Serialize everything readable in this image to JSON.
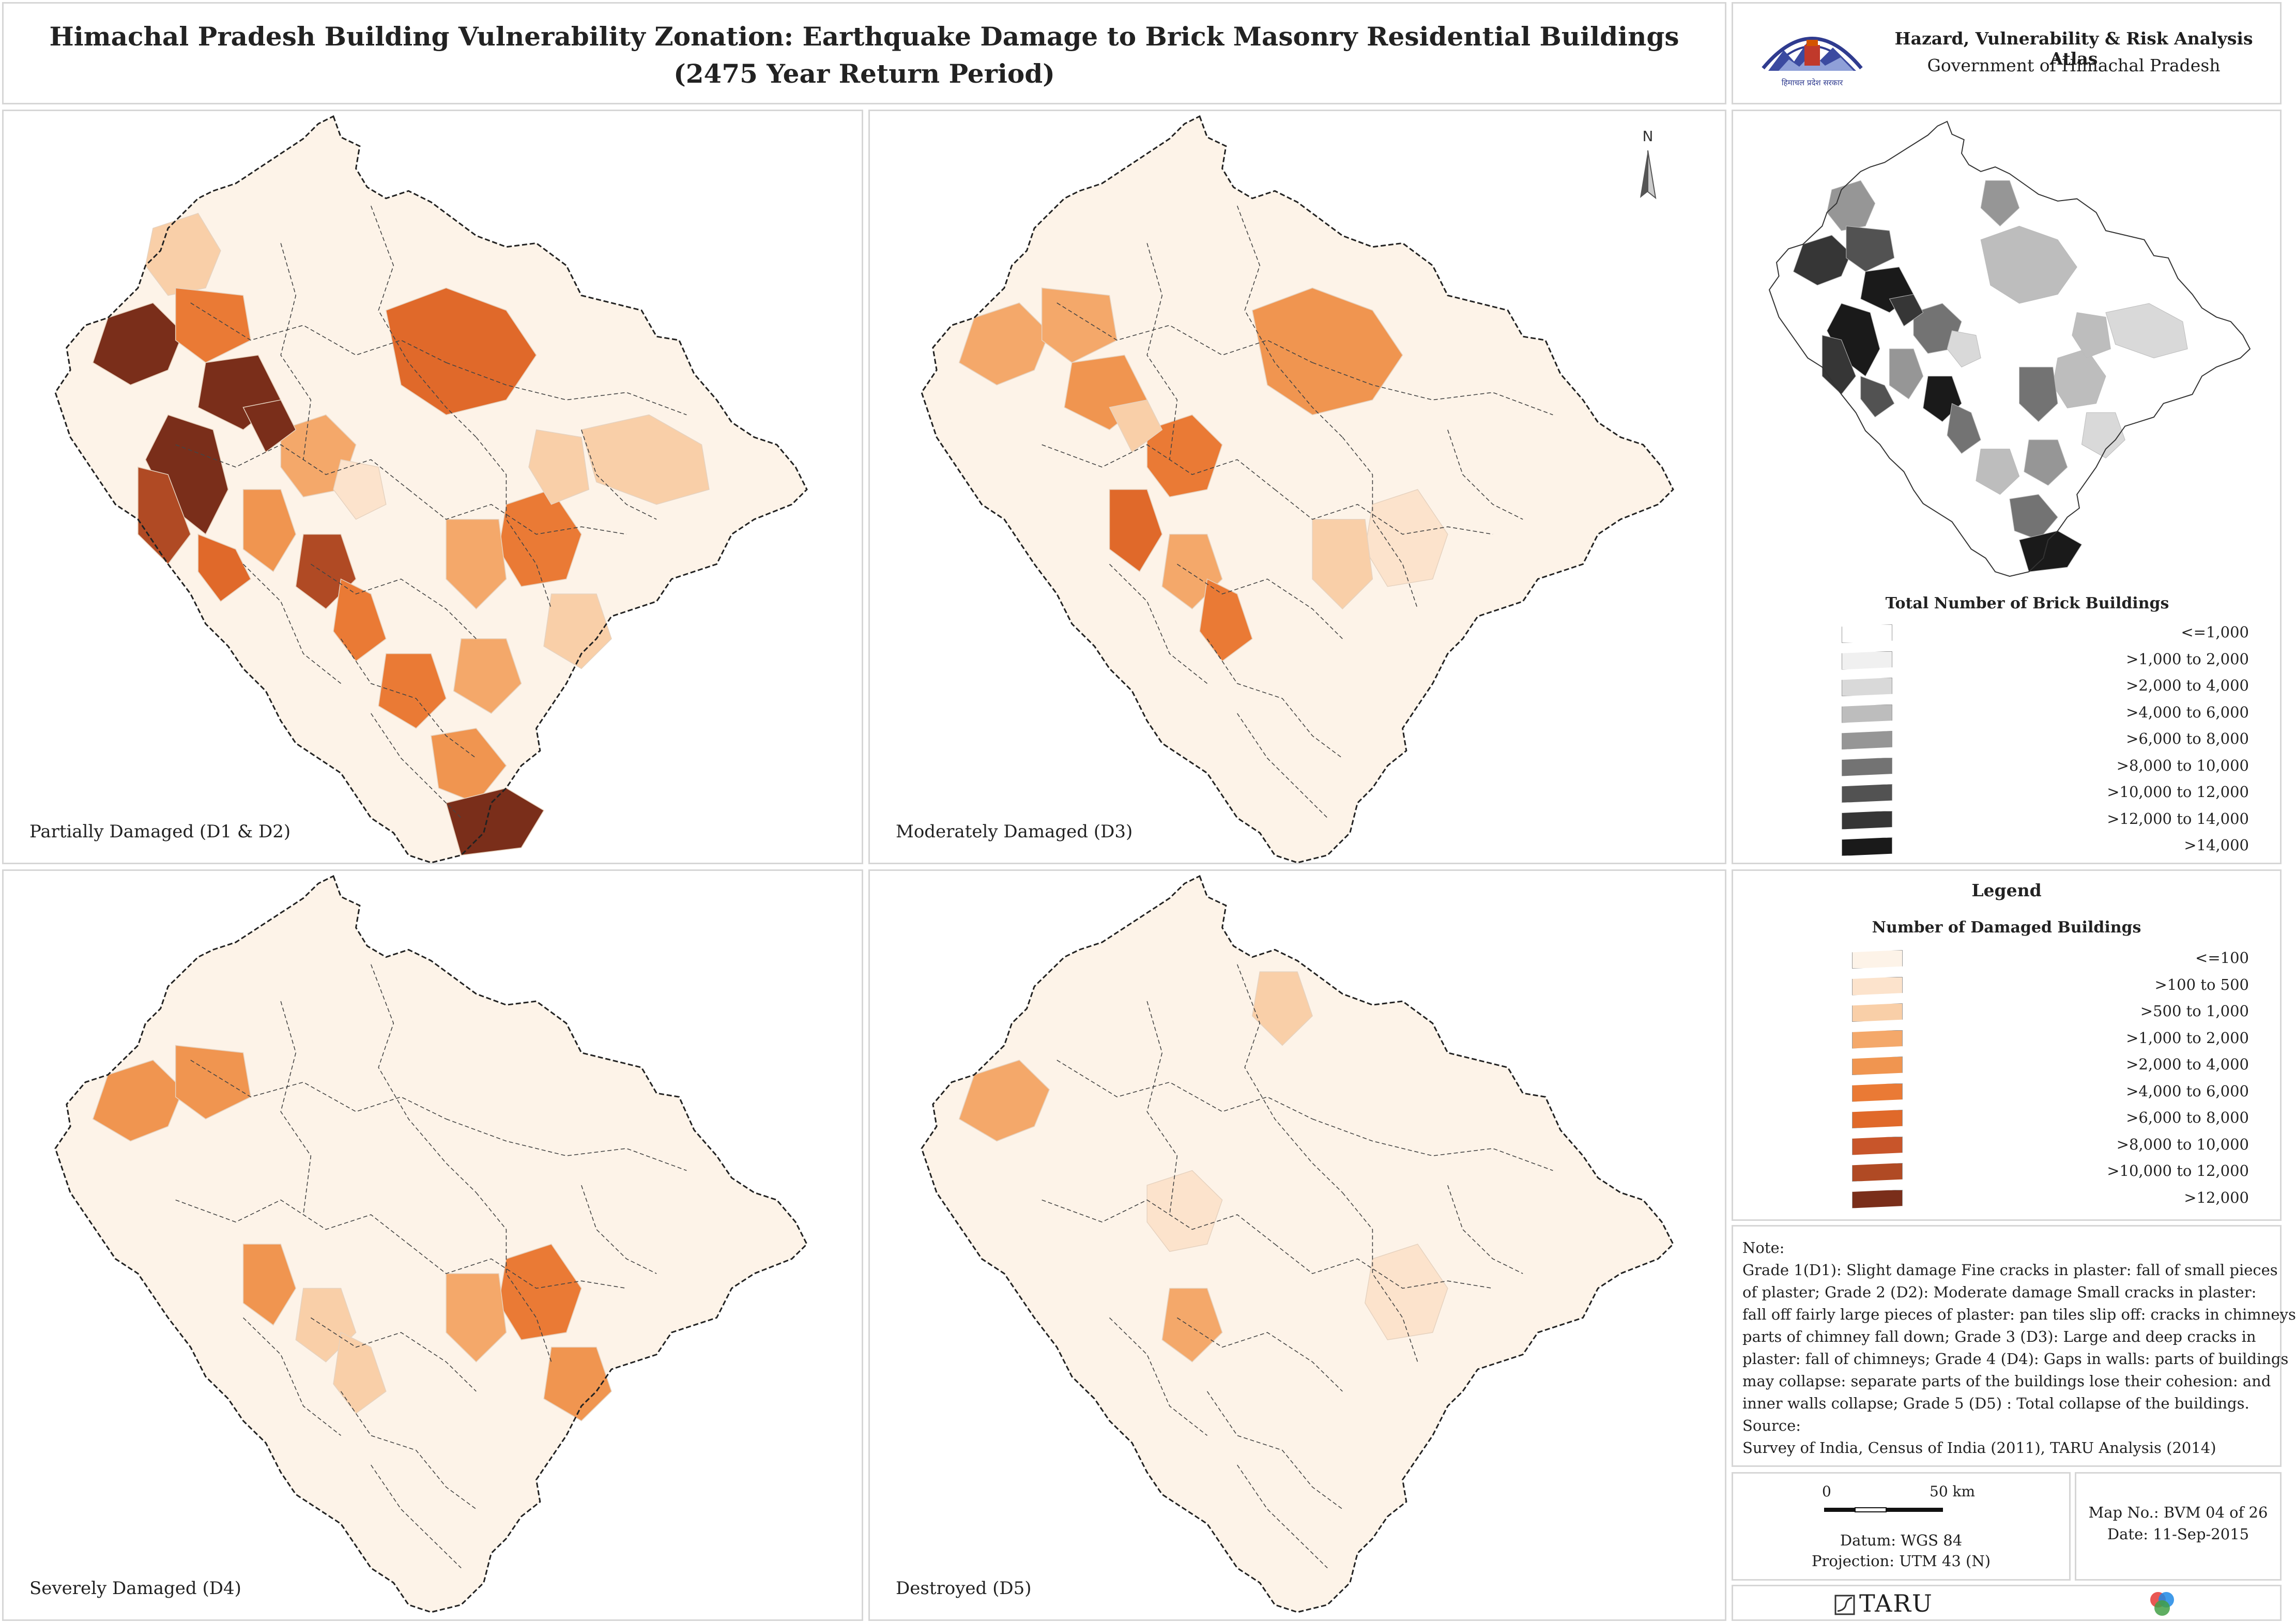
{
  "header": {
    "title_line1": "Himachal Pradesh Building Vulnerability Zonation: Earthquake Damage to Brick Masonry Residential Buildings",
    "title_line2": "(2475 Year Return Period)"
  },
  "atlas": {
    "title": "Hazard, Vulnerability & Risk Analysis Atlas",
    "subtitle": "Government of Himachal Pradesh",
    "emblem_text": "हिमाचल प्रदेश सरकार"
  },
  "north_arrow": "N",
  "panels": [
    {
      "label": "Partially Damaged (D1 & D2)"
    },
    {
      "label": "Moderately Damaged (D3)"
    },
    {
      "label": "Severely Damaged (D4)"
    },
    {
      "label": "Destroyed (D5)"
    }
  ],
  "inset": {
    "legend_title": "Total Number of Brick Buildings",
    "classes": [
      {
        "label": "<=1,000",
        "color": "#ffffff"
      },
      {
        "label": ">1,000 to 2,000",
        "color": "#f0f0f0"
      },
      {
        "label": ">2,000 to 4,000",
        "color": "#d9d9d9"
      },
      {
        "label": ">4,000 to 6,000",
        "color": "#bdbdbd"
      },
      {
        "label": ">6,000 to 8,000",
        "color": "#969696"
      },
      {
        "label": ">8,000 to 10,000",
        "color": "#737373"
      },
      {
        "label": ">10,000 to 12,000",
        "color": "#525252"
      },
      {
        "label": ">12,000 to 14,000",
        "color": "#363636"
      },
      {
        "label": ">14,000",
        "color": "#1a1a1a"
      }
    ]
  },
  "legend": {
    "heading": "Legend",
    "subtitle": "Number of Damaged Buildings",
    "classes": [
      {
        "label": "<=100",
        "color": "#fdf3e8"
      },
      {
        "label": ">100 to 500",
        "color": "#fce3cc"
      },
      {
        "label": ">500 to 1,000",
        "color": "#f9cfa8"
      },
      {
        "label": ">1,000 to 2,000",
        "color": "#f4a86a"
      },
      {
        "label": ">2,000 to 4,000",
        "color": "#f09550"
      },
      {
        "label": ">4,000 to 6,000",
        "color": "#ea7a35"
      },
      {
        "label": ">6,000 to 8,000",
        "color": "#e0692a"
      },
      {
        "label": ">8,000 to 10,000",
        "color": "#c8552a"
      },
      {
        "label": ">10,000 to 12,000",
        "color": "#b04a24"
      },
      {
        "label": ">12,000",
        "color": "#7a2e1a"
      }
    ]
  },
  "note": {
    "lines": [
      "Note:",
      "Grade 1(D1): Slight damage Fine cracks in plaster: fall of small pieces",
      "of plaster; Grade 2 (D2): Moderate damage Small cracks in plaster:",
      "fall off fairly large pieces of plaster: pan tiles slip off: cracks in chimneys",
      "parts of chimney fall down; Grade 3 (D3): Large and deep cracks in",
      "plaster: fall of chimneys; Grade 4 (D4): Gaps in walls: parts of buildings",
      "may collapse: separate parts of the buildings lose their cohesion: and",
      "inner walls collapse; Grade 5 (D5) : Total collapse of the buildings.",
      "Source:",
      "Survey of India, Census of India (2011),  TARU Analysis (2014)"
    ]
  },
  "scale": {
    "zero": "0",
    "fifty": "50 km",
    "datum": "Datum: WGS 84",
    "projection": "Projection: UTM 43 (N)"
  },
  "map_info": {
    "map_no": "Map No.: BVM 04 of 26",
    "date": "Date: 11-Sep-2015"
  },
  "footer": {
    "taru": "TARU"
  }
}
